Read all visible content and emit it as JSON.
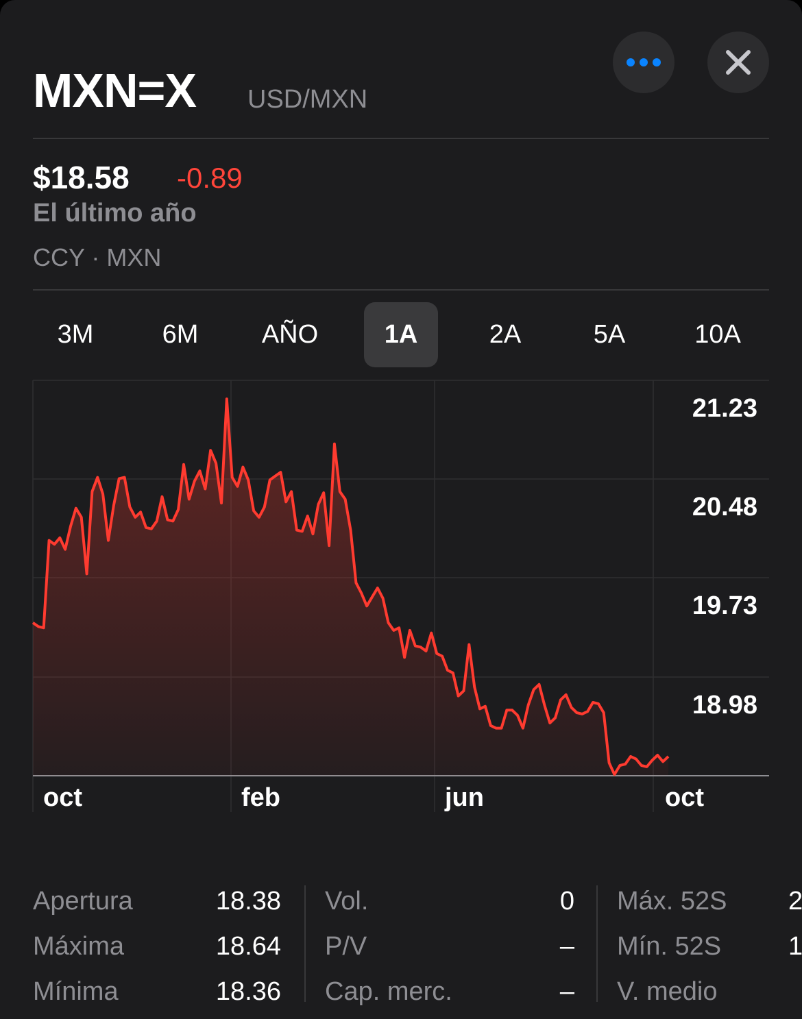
{
  "header": {
    "symbol": "MXN=X",
    "pair": "USD/MXN",
    "more_icon": "ellipsis-icon",
    "close_icon": "close-icon"
  },
  "quote": {
    "price": "$18.58",
    "change": "-0.89",
    "period": "El último año",
    "exchange": "CCY · MXN"
  },
  "ranges": [
    {
      "label": "3M",
      "active": false
    },
    {
      "label": "6M",
      "active": false
    },
    {
      "label": "AÑO",
      "active": false
    },
    {
      "label": "1A",
      "active": true
    },
    {
      "label": "2A",
      "active": false
    },
    {
      "label": "5A",
      "active": false
    },
    {
      "label": "10A",
      "active": false
    }
  ],
  "colors": {
    "background": "#1c1c1e",
    "line": "#ff3b30",
    "negative": "#ff453a",
    "accent": "#0a84ff"
  },
  "chart_data": {
    "type": "area",
    "y_ticks": [
      "21.23",
      "20.48",
      "19.73",
      "18.98"
    ],
    "x_ticks": [
      "oct",
      "feb",
      "jun",
      "oct"
    ],
    "ylim": [
      18.23,
      21.23
    ],
    "grid": true,
    "series": [
      {
        "values": [
          19.42,
          19.39,
          19.38,
          20.06,
          20.03,
          20.08,
          19.99,
          20.17,
          20.31,
          20.24,
          19.8,
          20.44,
          20.55,
          20.42,
          20.06,
          20.33,
          20.54,
          20.55,
          20.32,
          20.24,
          20.28,
          20.16,
          20.15,
          20.21,
          20.4,
          20.22,
          20.21,
          20.3,
          20.65,
          20.38,
          20.52,
          20.6,
          20.46,
          20.76,
          20.66,
          20.35,
          21.16,
          20.55,
          20.48,
          20.63,
          20.53,
          20.29,
          20.24,
          20.32,
          20.53,
          20.56,
          20.59,
          20.36,
          20.44,
          20.14,
          20.13,
          20.25,
          20.11,
          20.34,
          20.43,
          20.02,
          20.81,
          20.44,
          20.38,
          20.14,
          19.73,
          19.65,
          19.55,
          19.62,
          19.69,
          19.61,
          19.42,
          19.36,
          19.38,
          19.15,
          19.36,
          19.24,
          19.23,
          19.2,
          19.34,
          19.18,
          19.16,
          19.05,
          19.03,
          18.85,
          18.89,
          19.25,
          18.92,
          18.75,
          18.77,
          18.62,
          18.6,
          18.6,
          18.74,
          18.74,
          18.7,
          18.6,
          18.78,
          18.9,
          18.94,
          18.78,
          18.64,
          18.68,
          18.82,
          18.86,
          18.76,
          18.72,
          18.71,
          18.73,
          18.8,
          18.79,
          18.72,
          18.33,
          18.24,
          18.31,
          18.32,
          18.38,
          18.36,
          18.31,
          18.3,
          18.35,
          18.39,
          18.34,
          18.38
        ]
      }
    ]
  },
  "stats": {
    "col1": [
      {
        "label": "Apertura",
        "value": "18.38"
      },
      {
        "label": "Máxima",
        "value": "18.64"
      },
      {
        "label": "Mínima",
        "value": "18.36"
      }
    ],
    "col2": [
      {
        "label": "Vol.",
        "value": "0"
      },
      {
        "label": "P/V",
        "value": "–"
      },
      {
        "label": "Cap. merc.",
        "value": "–"
      }
    ],
    "col3": [
      {
        "label": "Máx. 52S",
        "value": "2"
      },
      {
        "label": "Mín. 52S",
        "value": "1"
      },
      {
        "label": "V. medio",
        "value": ""
      }
    ]
  }
}
